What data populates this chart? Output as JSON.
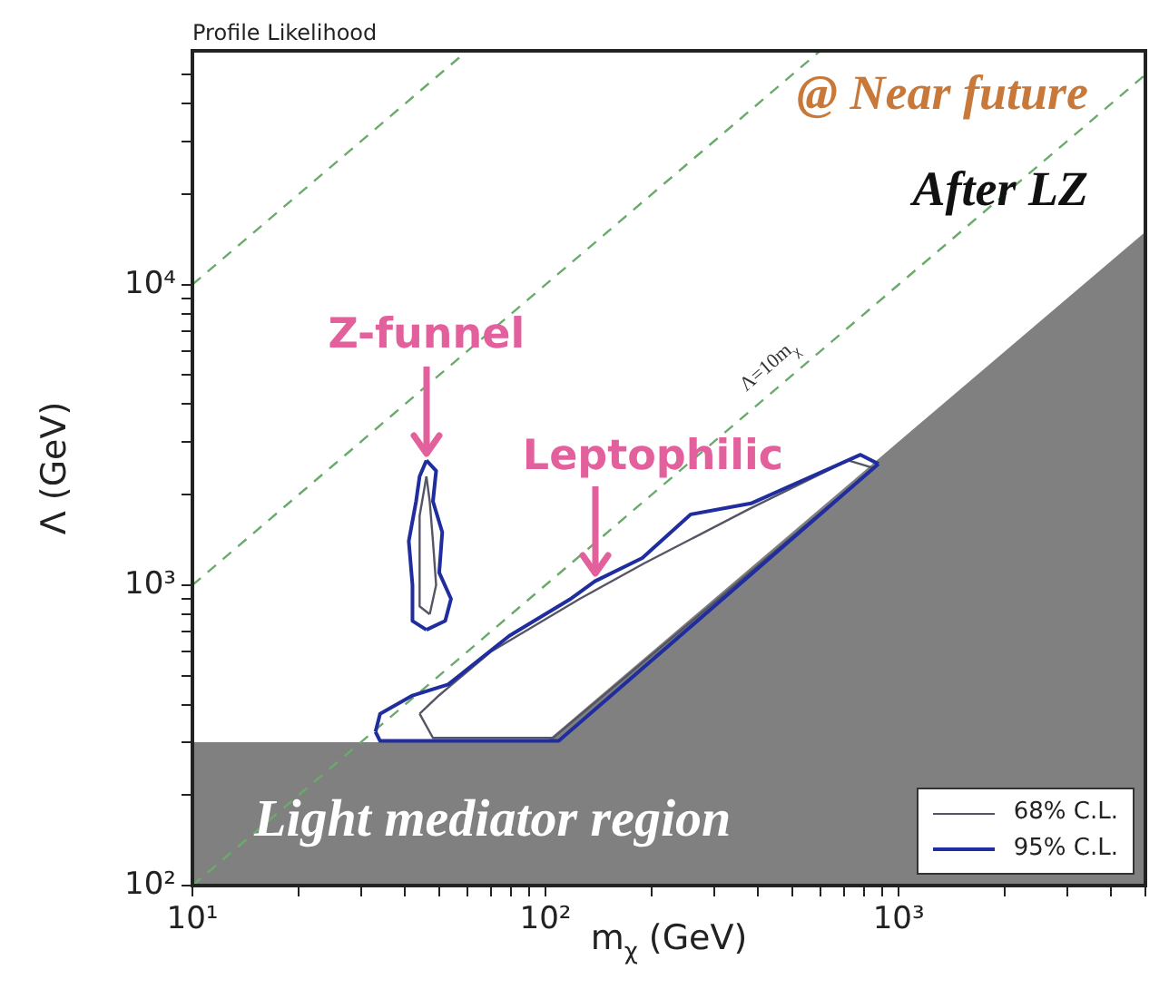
{
  "chart_data": {
    "type": "line",
    "title": "Profile Likelihood",
    "xlabel": "m$_{χ}$ (GeV)",
    "ylabel": "Λ (GeV)",
    "xlim": [
      10,
      5000
    ],
    "ylim": [
      100,
      60000
    ],
    "xticks": [
      {
        "value": 10,
        "label": "10¹"
      },
      {
        "value": 20,
        "label": null
      },
      {
        "value": 30,
        "label": null
      },
      {
        "value": 40,
        "label": null
      },
      {
        "value": 50,
        "label": null
      },
      {
        "value": 60,
        "label": null
      },
      {
        "value": 70,
        "label": null
      },
      {
        "value": 80,
        "label": null
      },
      {
        "value": 90,
        "label": null
      },
      {
        "value": 100,
        "label": "10²"
      },
      {
        "value": 200,
        "label": null
      },
      {
        "value": 300,
        "label": null
      },
      {
        "value": 400,
        "label": null
      },
      {
        "value": 500,
        "label": null
      },
      {
        "value": 600,
        "label": null
      },
      {
        "value": 700,
        "label": null
      },
      {
        "value": 800,
        "label": null
      },
      {
        "value": 900,
        "label": null
      },
      {
        "value": 1000,
        "label": "10³"
      },
      {
        "value": 2000,
        "label": null
      },
      {
        "value": 3000,
        "label": null
      },
      {
        "value": 4000,
        "label": null
      },
      {
        "value": 5000,
        "label": null
      }
    ],
    "yticks": [
      {
        "value": 100,
        "label": "10²"
      },
      {
        "value": 200,
        "label": null
      },
      {
        "value": 300,
        "label": null
      },
      {
        "value": 400,
        "label": null
      },
      {
        "value": 500,
        "label": null
      },
      {
        "value": 600,
        "label": null
      },
      {
        "value": 700,
        "label": null
      },
      {
        "value": 800,
        "label": null
      },
      {
        "value": 900,
        "label": null
      },
      {
        "value": 1000,
        "label": "10³"
      },
      {
        "value": 2000,
        "label": null
      },
      {
        "value": 3000,
        "label": null
      },
      {
        "value": 4000,
        "label": null
      },
      {
        "value": 5000,
        "label": null
      },
      {
        "value": 6000,
        "label": null
      },
      {
        "value": 7000,
        "label": null
      },
      {
        "value": 8000,
        "label": null
      },
      {
        "value": 9000,
        "label": null
      },
      {
        "value": 10000,
        "label": "10⁴"
      },
      {
        "value": 20000,
        "label": null
      },
      {
        "value": 30000,
        "label": null
      },
      {
        "value": 40000,
        "label": null
      },
      {
        "value": 50000,
        "label": null
      }
    ],
    "log": "xy",
    "marker": "none",
    "legend": "bottom right",
    "bands": [
      {
        "axis": "y",
        "from": 100,
        "to": 300,
        "label": "Light mediator region",
        "color": "#808080"
      }
    ],
    "series": [
      {
        "type": "area",
        "color": "#808080",
        "x": [
          100,
          5000
        ],
        "values": [
          300,
          15000
        ]
      },
      {
        "color": "#6aaa6a",
        "line_style": "dashed",
        "x": [
          10,
          5000
        ],
        "values": [
          100,
          50000
        ]
      },
      {
        "color": "#6aaa6a",
        "line_style": "dashed",
        "x": [
          10,
          600
        ],
        "values": [
          1000,
          60000
        ]
      },
      {
        "color": "#6aaa6a",
        "line_style": "dashed",
        "x": [
          10,
          60
        ],
        "values": [
          10000,
          60000
        ]
      },
      {
        "name": "68% C.L.",
        "color": "#555566",
        "x": [
          44,
          50,
          70,
          125,
          190,
          380,
          720,
          850
        ],
        "values": [
          373,
          430,
          600,
          900,
          1180,
          1800,
          2600,
          2450
        ]
      },
      {
        "color": "#555566",
        "x": [
          44,
          48,
          105,
          850
        ],
        "values": [
          373,
          310,
          310,
          2450
        ]
      },
      {
        "name": "95% C.L.",
        "color": "#1f2d9e",
        "x": [
          33,
          34,
          42,
          53,
          79,
          117,
          138,
          188,
          258,
          382,
          780,
          877
        ],
        "values": [
          325,
          373,
          429,
          467,
          678,
          895,
          1030,
          1230,
          1720,
          1870,
          2715,
          2530
        ]
      },
      {
        "color": "#1f2d9e",
        "x": [
          33,
          34,
          109,
          877
        ],
        "values": [
          325,
          303,
          303,
          2530
        ]
      },
      {
        "color": "#555566",
        "x": [
          47,
          44,
          44,
          44,
          46
        ],
        "values": [
          800,
          850,
          1200,
          1700,
          2300
        ]
      },
      {
        "color": "#555566",
        "x": [
          47,
          49,
          48,
          47,
          46
        ],
        "values": [
          800,
          1000,
          1400,
          1900,
          2300
        ]
      },
      {
        "color": "#1f2d9e",
        "x": [
          46,
          42,
          42,
          41,
          43,
          44,
          46
        ],
        "values": [
          710,
          760,
          1000,
          1400,
          1900,
          2300,
          2600
        ]
      },
      {
        "color": "#1f2d9e",
        "x": [
          46,
          52,
          54,
          50,
          51,
          48,
          49,
          46
        ],
        "values": [
          710,
          760,
          900,
          1100,
          1500,
          1900,
          2400,
          2600
        ]
      }
    ],
    "annotations": [
      "@ Near future",
      "After LZ",
      {
        "text": "Z-funnel",
        "x": 46,
        "y": 2600
      },
      {
        "text": "Leptophilic",
        "x": 138,
        "y": 1030
      },
      "Λ=10m$_{χ}$"
    ]
  }
}
